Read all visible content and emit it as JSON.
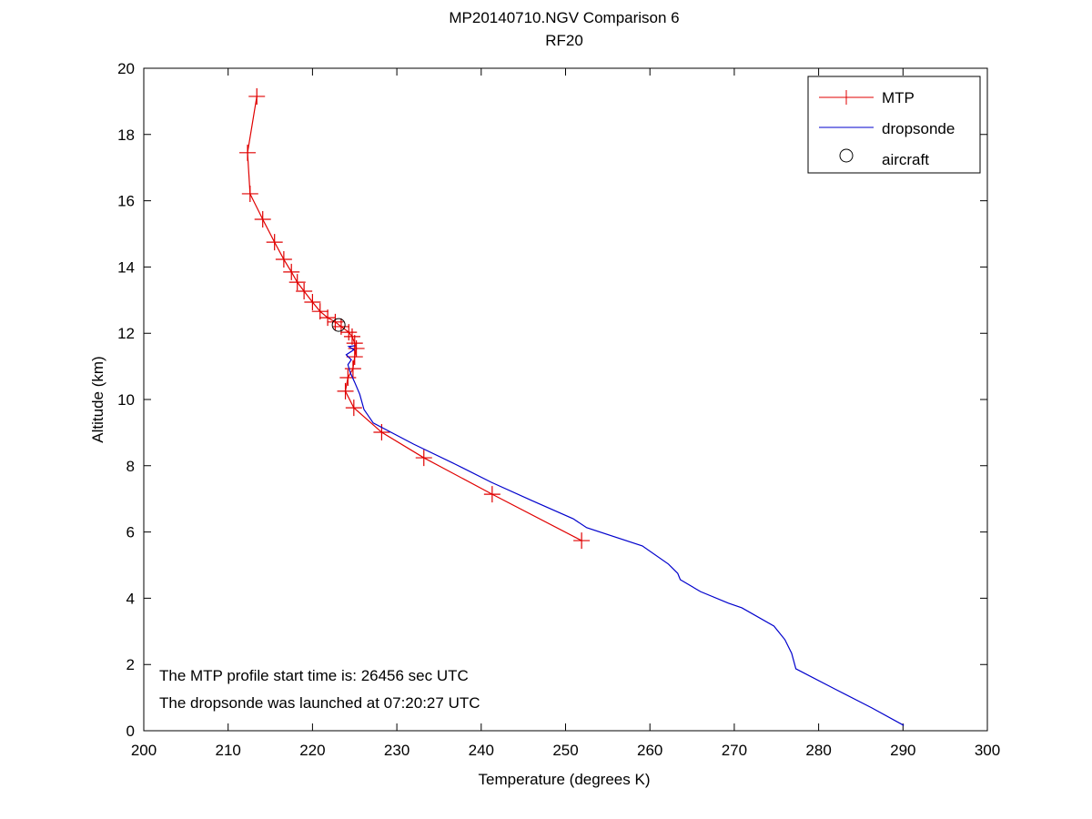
{
  "chart_data": {
    "type": "line",
    "title": "MP20140710.NGV Comparison 6",
    "subtitle": "RF20",
    "xlabel": "Temperature (degrees K)",
    "ylabel": "Altitude (km)",
    "xlim": [
      200,
      300
    ],
    "ylim": [
      0,
      20
    ],
    "xticks": [
      200,
      210,
      220,
      230,
      240,
      250,
      260,
      270,
      280,
      290,
      300
    ],
    "yticks": [
      0,
      2,
      4,
      6,
      8,
      10,
      12,
      14,
      16,
      18,
      20
    ],
    "grid": false,
    "legend_position": "top-right",
    "legend": [
      "MTP",
      "dropsonde",
      "aircraft"
    ],
    "annotations": [
      "The MTP profile start time is: 26456 sec UTC",
      "The dropsonde was launched at 07:20:27 UTC"
    ],
    "series": [
      {
        "name": "MTP",
        "color": "#e00000",
        "marker": "+",
        "x": [
          213.4,
          212.3,
          212.6,
          214.1,
          215.5,
          216.6,
          217.5,
          218.2,
          219.0,
          220.0,
          220.9,
          221.8,
          222.7,
          223.4,
          224.3,
          224.7,
          225.0,
          225.2,
          225.0,
          224.8,
          224.2,
          223.9,
          224.9,
          228.2,
          233.2,
          241.3,
          251.9
        ],
        "y": [
          19.15,
          17.45,
          16.21,
          15.44,
          14.75,
          14.23,
          13.85,
          13.54,
          13.27,
          12.94,
          12.66,
          12.47,
          12.34,
          12.2,
          12.03,
          11.9,
          11.7,
          11.54,
          11.29,
          10.93,
          10.66,
          10.25,
          9.75,
          9.01,
          8.24,
          7.14,
          5.74
        ]
      },
      {
        "name": "dropsonde",
        "color": "#0000cc",
        "marker": "none",
        "x": [
          290.1,
          286.3,
          282.0,
          277.3,
          276.8,
          276.0,
          274.7,
          270.9,
          269.3,
          266.0,
          263.6,
          263.3,
          262.2,
          259.1,
          252.5,
          250.9,
          246.0,
          241.2,
          236.9,
          232.0,
          227.2,
          226.1,
          225.6,
          225.0,
          224.5,
          224.2,
          224.6,
          224.0,
          224.9,
          224.3,
          225.0
        ],
        "y": [
          0.16,
          0.69,
          1.25,
          1.87,
          2.34,
          2.75,
          3.16,
          3.71,
          3.85,
          4.2,
          4.56,
          4.75,
          5.03,
          5.58,
          6.13,
          6.4,
          6.95,
          7.5,
          8.05,
          8.65,
          9.29,
          9.7,
          10.16,
          10.52,
          10.8,
          11.05,
          11.2,
          11.35,
          11.5,
          11.6,
          11.62
        ]
      },
      {
        "name": "aircraft",
        "color": "#000000",
        "marker": "o",
        "x": [
          223.1
        ],
        "y": [
          12.25
        ]
      }
    ]
  }
}
